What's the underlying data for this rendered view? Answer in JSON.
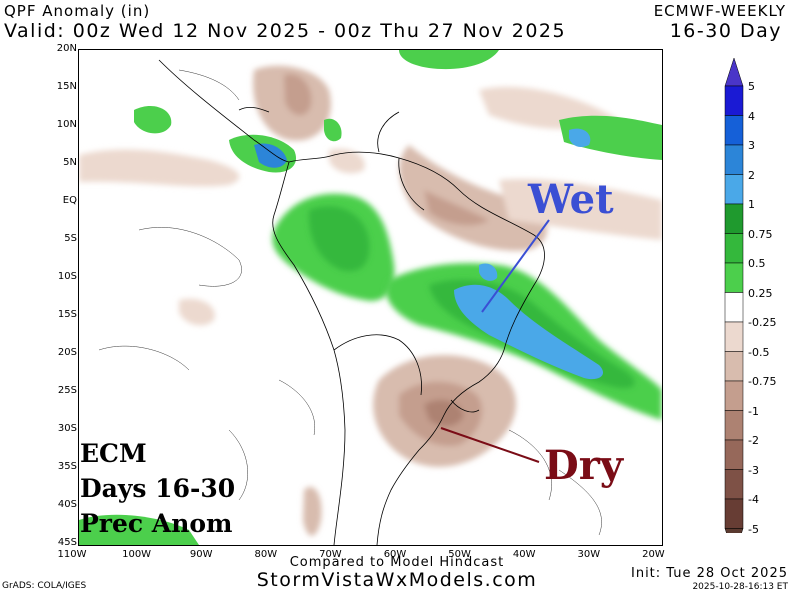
{
  "header": {
    "title": "QPF Anomaly (in)",
    "model": "ECMWF-WEEKLY",
    "valid": "Valid: 00z Wed 12 Nov 2025 - 00z Thu 27 Nov 2025",
    "range": "16-30 Day"
  },
  "axes": {
    "lat_ticks": [
      "20N",
      "15N",
      "10N",
      "5N",
      "EQ",
      "5S",
      "10S",
      "15S",
      "20S",
      "25S",
      "30S",
      "35S",
      "40S",
      "45S"
    ],
    "lon_ticks": [
      "110W",
      "100W",
      "90W",
      "80W",
      "70W",
      "60W",
      "50W",
      "40W",
      "30W",
      "20W"
    ]
  },
  "annotations": {
    "ecm_lines": [
      "ECM",
      "Days 16-30",
      "Prec Anom"
    ],
    "wet": "Wet",
    "dry": "Dry"
  },
  "colorbar": {
    "labels": [
      "5",
      "4",
      "3",
      "2",
      "1",
      "0.75",
      "0.5",
      "0.25",
      "-0.25",
      "-0.5",
      "-0.75",
      "-1",
      "-2",
      "-3",
      "-4",
      "-5"
    ],
    "colors": [
      "#1a1ad4",
      "#1560d8",
      "#2c85d8",
      "#4aa8e8",
      "#1f9a2e",
      "#34b83c",
      "#4ccf4c",
      "#ffffff",
      "#ecd9cf",
      "#d8bcae",
      "#c49e8e",
      "#ad8272",
      "#96685a",
      "#7e5146",
      "#673d34"
    ]
  },
  "footer": {
    "compared": "Compared to Model Hindcast",
    "website": "StormVistaWxModels.com",
    "grads": "GrADS: COLA/IGES",
    "init": "Init: Tue 28 Oct 2025",
    "stamp": "2025-10-28-16:13 ET"
  }
}
